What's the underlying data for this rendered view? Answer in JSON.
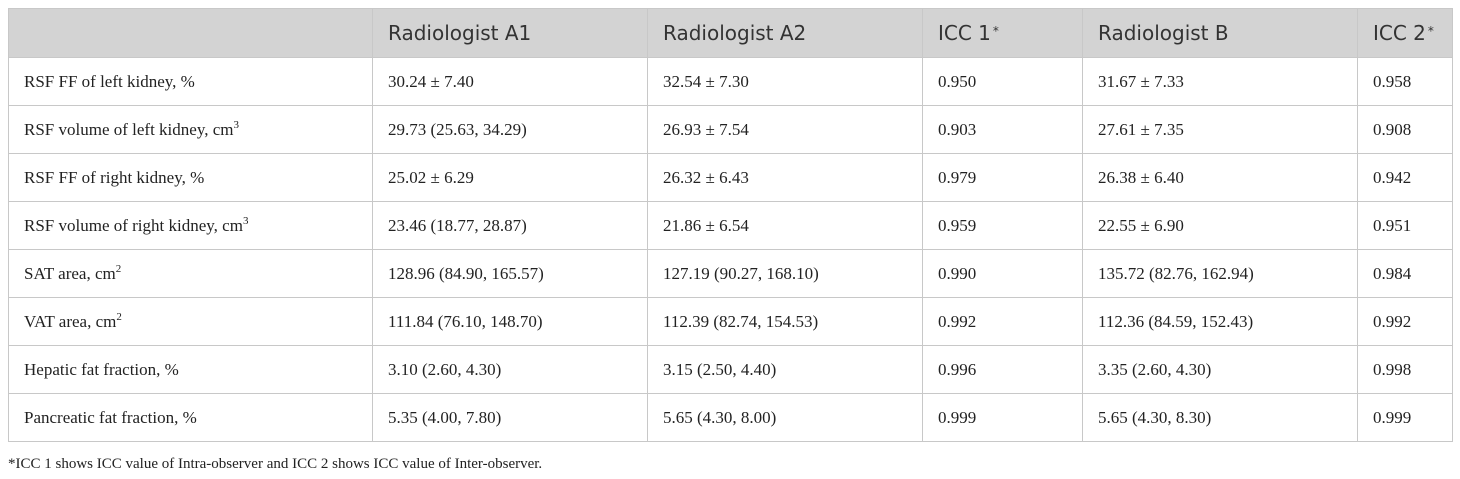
{
  "table": {
    "headers": [
      {
        "text": "",
        "mark": ""
      },
      {
        "text": "Radiologist A1",
        "mark": ""
      },
      {
        "text": "Radiologist A2",
        "mark": ""
      },
      {
        "text": "ICC 1",
        "mark": "*"
      },
      {
        "text": "Radiologist B",
        "mark": ""
      },
      {
        "text": "ICC 2",
        "mark": "*"
      }
    ],
    "rows": [
      {
        "label": "RSF FF of left kidney, %",
        "unit_sup": "",
        "values": [
          "30.24 ± 7.40",
          "32.54 ± 7.30",
          "0.950",
          "31.67 ± 7.33",
          "0.958"
        ]
      },
      {
        "label": "RSF volume of left kidney, cm",
        "unit_sup": "3",
        "values": [
          "29.73 (25.63, 34.29)",
          "26.93 ± 7.54",
          "0.903",
          "27.61 ± 7.35",
          "0.908"
        ]
      },
      {
        "label": "RSF FF of right kidney, %",
        "unit_sup": "",
        "values": [
          "25.02 ± 6.29",
          "26.32 ± 6.43",
          "0.979",
          "26.38 ± 6.40",
          "0.942"
        ]
      },
      {
        "label": "RSF volume of right kidney, cm",
        "unit_sup": "3",
        "values": [
          "23.46 (18.77, 28.87)",
          "21.86 ± 6.54",
          "0.959",
          "22.55 ± 6.90",
          "0.951"
        ]
      },
      {
        "label": "SAT area, cm",
        "unit_sup": "2",
        "values": [
          "128.96 (84.90, 165.57)",
          "127.19 (90.27, 168.10)",
          "0.990",
          "135.72 (82.76, 162.94)",
          "0.984"
        ]
      },
      {
        "label": "VAT area, cm",
        "unit_sup": "2",
        "values": [
          "111.84 (76.10, 148.70)",
          "112.39 (82.74, 154.53)",
          "0.992",
          "112.36 (84.59, 152.43)",
          "0.992"
        ]
      },
      {
        "label": "Hepatic fat fraction, %",
        "unit_sup": "",
        "values": [
          "3.10 (2.60, 4.30)",
          "3.15 (2.50, 4.40)",
          "0.996",
          "3.35 (2.60, 4.30)",
          "0.998"
        ]
      },
      {
        "label": "Pancreatic fat fraction, %",
        "unit_sup": "",
        "values": [
          "5.35 (4.00, 7.80)",
          "5.65 (4.30, 8.00)",
          "0.999",
          "5.65 (4.30, 8.30)",
          "0.999"
        ]
      }
    ]
  },
  "footnote": "*ICC 1 shows ICC value of Intra-observer and ICC 2 shows ICC value of Inter-observer."
}
